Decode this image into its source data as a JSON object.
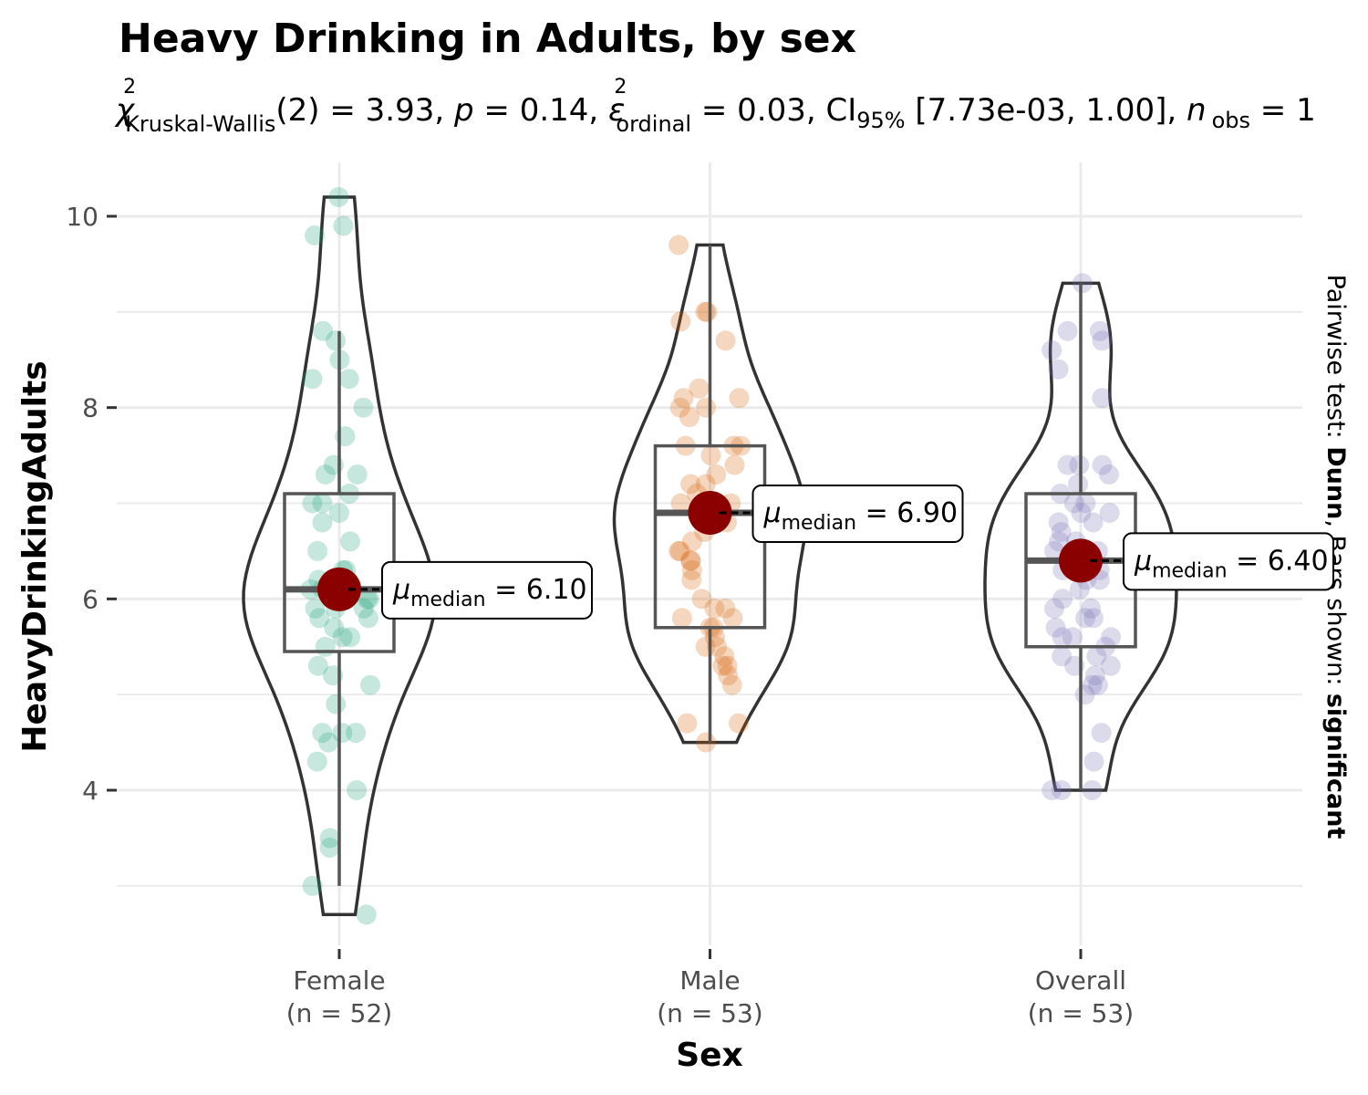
{
  "chart_data": {
    "type": "violin",
    "title": "Heavy Drinking in Adults, by sex",
    "subtitle": {
      "stat_symbol": "χ",
      "stat_sup": "2",
      "stat_sub": "Kruskal-Wallis",
      "df_text": "(2) = 3.93, ",
      "p_symbol": "p",
      "p_text": " = 0.14, ",
      "es_symbol": "ε",
      "es_sup": "2",
      "es_sub": "ordinal",
      "es_text": " = 0.03, CI",
      "ci_sub": "95%",
      "ci_text": " [7.73e-03, 1.00], ",
      "n_symbol": "n",
      "n_sub": "obs",
      "n_text": " = 1"
    },
    "xlabel": "Sex",
    "ylabel": "HeavyDrinkingAdults",
    "ylim": [
      2.3,
      10.6
    ],
    "yticks": [
      4,
      6,
      8,
      10
    ],
    "caption": {
      "prefix": "Pairwise test: ",
      "test": "Dunn",
      "middle": ", Bars shown: ",
      "bars": "significant"
    },
    "grid": true,
    "groups": [
      {
        "name": "Female",
        "n_label": "(n = 52)",
        "color": "#1B9E77",
        "min": 2.7,
        "q1": 5.45,
        "median": 6.1,
        "q3": 7.1,
        "max": 10.2,
        "whisker_low": 3.0,
        "whisker_high": 8.8,
        "median_label_symbol": "μ",
        "median_label_sub": "median",
        "median_label_text": " = 6.10",
        "points": [
          10.2,
          9.9,
          9.8,
          8.8,
          8.7,
          8.5,
          8.3,
          8.0,
          7.7,
          7.4,
          7.3,
          7.3,
          7.1,
          7.0,
          6.9,
          6.8,
          6.6,
          6.5,
          6.3,
          6.2,
          6.2,
          6.1,
          6.0,
          6.0,
          5.9,
          5.9,
          5.8,
          5.8,
          5.7,
          5.6,
          5.6,
          5.5,
          5.3,
          5.1,
          4.9,
          4.6,
          4.6,
          4.5,
          4.3,
          4.0,
          3.5,
          3.4,
          3.0,
          2.7,
          6.1,
          5.9,
          6.0,
          7.0,
          6.3,
          5.2,
          4.6,
          8.3
        ]
      },
      {
        "name": "Male",
        "n_label": "(n = 53)",
        "color": "#D95F02",
        "min": 4.5,
        "q1": 5.7,
        "median": 6.9,
        "q3": 7.6,
        "max": 9.7,
        "whisker_low": 4.5,
        "whisker_high": 9.7,
        "median_label_symbol": "μ",
        "median_label_sub": "median",
        "median_label_text": " = 6.90",
        "points": [
          9.7,
          9.0,
          9.0,
          8.9,
          8.7,
          8.2,
          8.1,
          8.1,
          8.0,
          7.9,
          7.6,
          7.6,
          7.6,
          7.5,
          7.3,
          7.2,
          7.2,
          7.1,
          7.0,
          7.0,
          6.9,
          6.9,
          6.8,
          6.8,
          6.7,
          6.5,
          6.5,
          6.4,
          6.4,
          6.3,
          6.2,
          5.9,
          5.9,
          5.8,
          5.8,
          5.7,
          5.7,
          5.6,
          5.5,
          5.4,
          5.3,
          5.3,
          5.2,
          5.1,
          4.7,
          4.7,
          4.5,
          6.0,
          6.6,
          7.4,
          6.8,
          8.0,
          5.5
        ]
      },
      {
        "name": "Overall",
        "n_label": "(n = 53)",
        "color": "#7570B3",
        "min": 4.0,
        "q1": 5.5,
        "median": 6.4,
        "q3": 7.1,
        "max": 9.3,
        "whisker_low": 4.0,
        "whisker_high": 9.3,
        "median_label_symbol": "μ",
        "median_label_sub": "median",
        "median_label_text": " = 6.40",
        "points": [
          9.3,
          8.8,
          8.8,
          8.7,
          8.6,
          8.4,
          8.1,
          7.4,
          7.4,
          7.3,
          7.2,
          7.1,
          7.0,
          6.9,
          6.8,
          6.8,
          6.7,
          6.6,
          6.5,
          6.4,
          6.3,
          6.2,
          6.2,
          6.0,
          5.8,
          5.8,
          5.7,
          5.6,
          5.6,
          5.5,
          5.4,
          5.4,
          5.3,
          5.2,
          5.1,
          5.1,
          5.0,
          4.6,
          4.3,
          4.0,
          4.0,
          4.0,
          6.1,
          6.5,
          5.9,
          7.0,
          5.3,
          6.9,
          7.4,
          5.6,
          6.6,
          6.3,
          5.9
        ]
      }
    ]
  }
}
